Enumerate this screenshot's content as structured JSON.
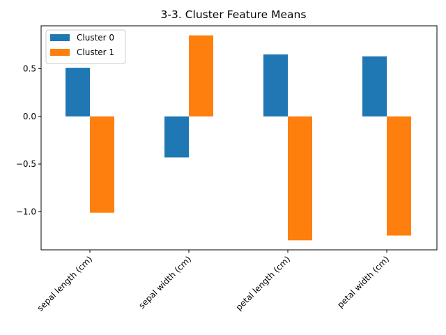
{
  "chart_data": {
    "type": "bar",
    "title": "3-3. Cluster Feature Means",
    "xlabel": "",
    "ylabel": "",
    "categories": [
      "sepal length (cm)",
      "sepal width (cm)",
      "petal length (cm)",
      "petal width (cm)"
    ],
    "series": [
      {
        "name": "Cluster 0",
        "color": "#1f77b4",
        "values": [
          0.51,
          -0.43,
          0.65,
          0.63
        ]
      },
      {
        "name": "Cluster 1",
        "color": "#ff7f0e",
        "values": [
          -1.01,
          0.85,
          -1.3,
          -1.25
        ]
      }
    ],
    "ylim": [
      -1.4,
      0.95
    ],
    "yticks": [
      -1.0,
      -0.5,
      0.0,
      0.5
    ],
    "ytick_labels": [
      "−1.0",
      "−0.5",
      "0.0",
      "0.5"
    ],
    "x_tick_rotation_deg": 45,
    "grid": false,
    "legend_position": "upper-left"
  }
}
